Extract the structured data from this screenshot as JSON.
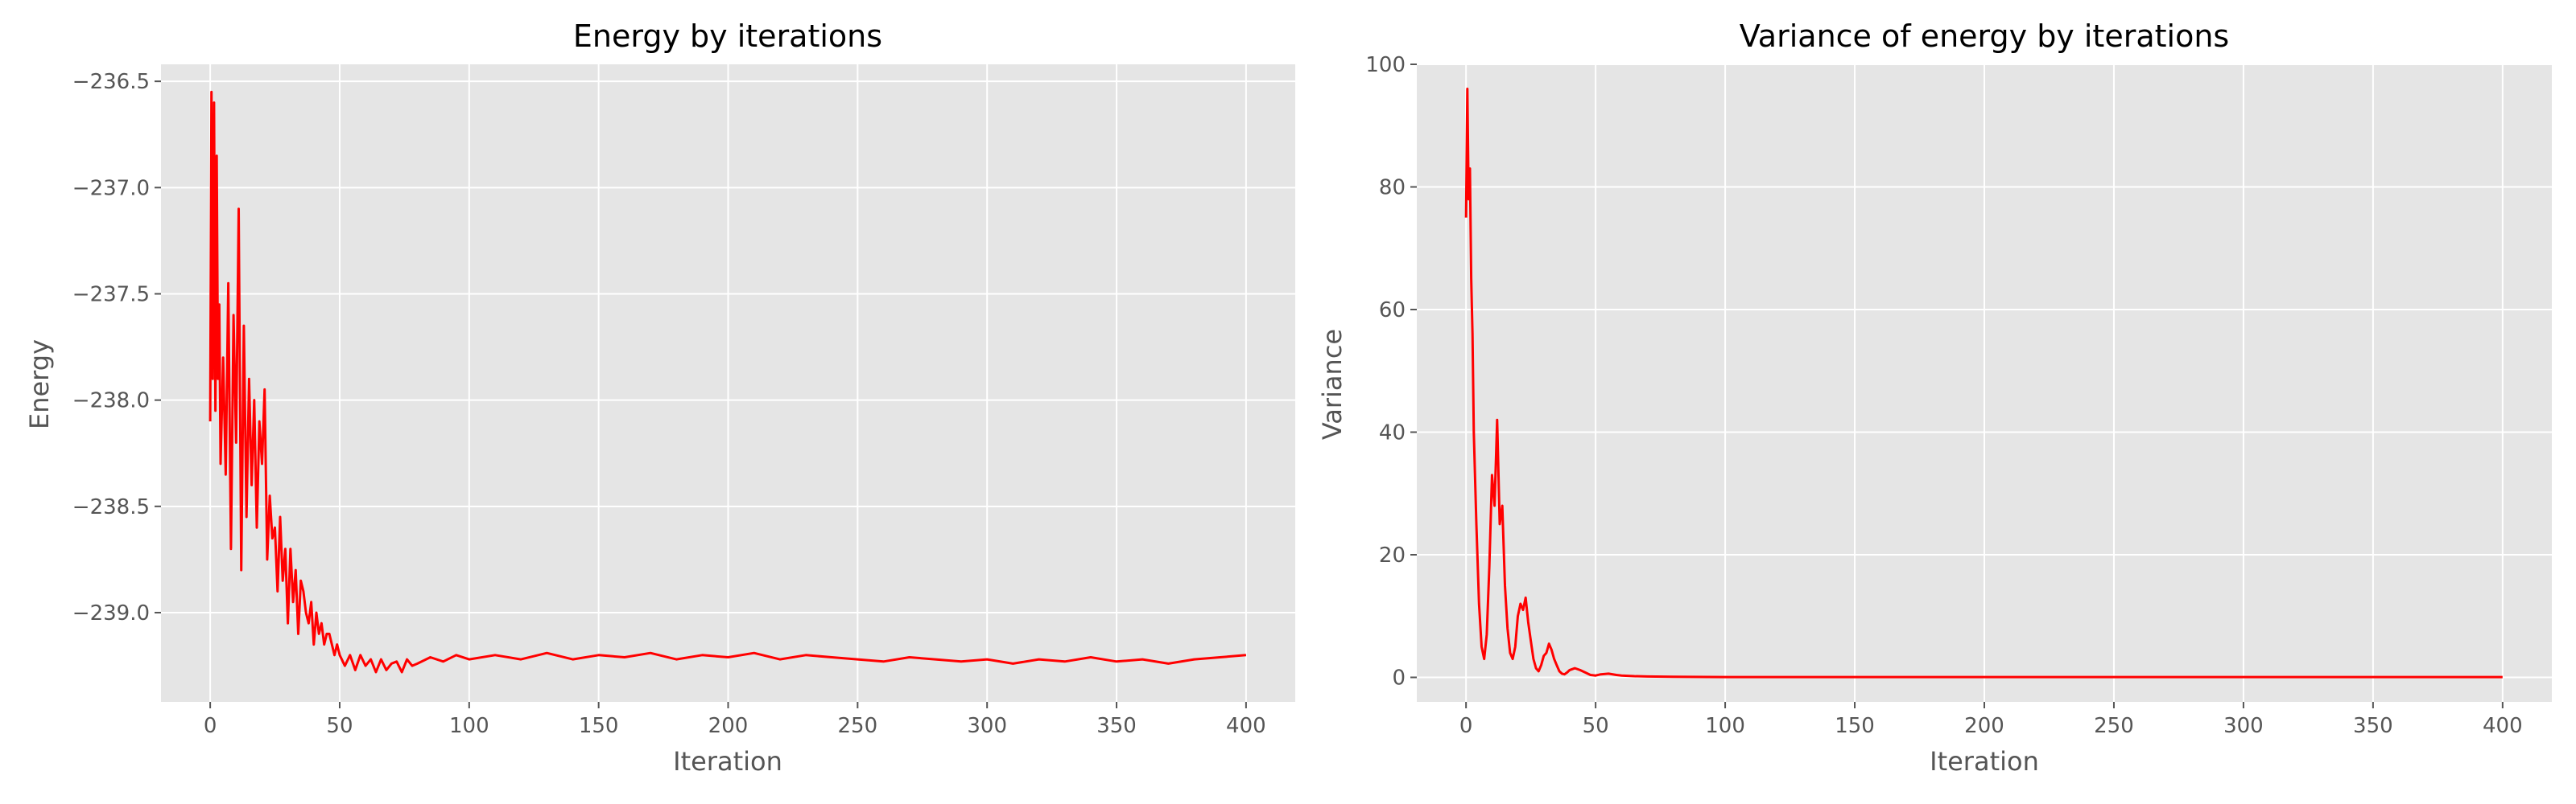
{
  "chart_data": [
    {
      "type": "line",
      "title": "Energy by iterations",
      "xlabel": "Iteration",
      "ylabel": "Energy",
      "xlim": [
        -19,
        419
      ],
      "ylim": [
        -239.42,
        -236.42
      ],
      "xticks": [
        0,
        50,
        100,
        150,
        200,
        250,
        300,
        350,
        400
      ],
      "yticks": [
        -239.0,
        -238.5,
        -238.0,
        -237.5,
        -237.0,
        -236.5
      ],
      "ytick_labels": [
        "−239.0",
        "−238.5",
        "−238.0",
        "−237.5",
        "−237.0",
        "−236.5"
      ],
      "grid": true,
      "color": "#ff0000",
      "series": [
        {
          "x": [
            0,
            0.5,
            1,
            1.5,
            2,
            2.5,
            3,
            3.5,
            4,
            5,
            6,
            7,
            8,
            9,
            10,
            11,
            12,
            13,
            14,
            15,
            16,
            17,
            18,
            19,
            20,
            21,
            22,
            23,
            24,
            25,
            26,
            27,
            28,
            29,
            30,
            31,
            32,
            33,
            34,
            35,
            36,
            37,
            38,
            39,
            40,
            41,
            42,
            43,
            44,
            45,
            46,
            47,
            48,
            49,
            50,
            52,
            54,
            56,
            58,
            60,
            62,
            64,
            66,
            68,
            70,
            72,
            74,
            76,
            78,
            80,
            85,
            90,
            95,
            100,
            110,
            120,
            130,
            140,
            150,
            160,
            170,
            180,
            190,
            200,
            210,
            220,
            230,
            240,
            250,
            260,
            270,
            280,
            290,
            300,
            310,
            320,
            330,
            340,
            350,
            360,
            370,
            380,
            390,
            400
          ],
          "y": [
            -238.1,
            -236.55,
            -237.9,
            -236.6,
            -238.05,
            -236.85,
            -237.9,
            -237.55,
            -238.3,
            -237.8,
            -238.35,
            -237.45,
            -238.7,
            -237.6,
            -238.2,
            -237.1,
            -238.8,
            -237.65,
            -238.55,
            -237.9,
            -238.4,
            -238.0,
            -238.6,
            -238.1,
            -238.3,
            -237.95,
            -238.75,
            -238.45,
            -238.65,
            -238.6,
            -238.9,
            -238.55,
            -238.85,
            -238.7,
            -239.05,
            -238.7,
            -238.95,
            -238.8,
            -239.1,
            -238.85,
            -238.9,
            -239.0,
            -239.05,
            -238.95,
            -239.15,
            -239.0,
            -239.1,
            -239.05,
            -239.15,
            -239.1,
            -239.1,
            -239.15,
            -239.2,
            -239.15,
            -239.2,
            -239.25,
            -239.2,
            -239.27,
            -239.2,
            -239.25,
            -239.22,
            -239.28,
            -239.22,
            -239.27,
            -239.24,
            -239.23,
            -239.28,
            -239.22,
            -239.25,
            -239.24,
            -239.21,
            -239.23,
            -239.2,
            -239.22,
            -239.2,
            -239.22,
            -239.19,
            -239.22,
            -239.2,
            -239.21,
            -239.19,
            -239.22,
            -239.2,
            -239.21,
            -239.19,
            -239.22,
            -239.2,
            -239.21,
            -239.22,
            -239.23,
            -239.21,
            -239.22,
            -239.23,
            -239.22,
            -239.24,
            -239.22,
            -239.23,
            -239.21,
            -239.23,
            -239.22,
            -239.24,
            -239.22,
            -239.21,
            -239.2
          ]
        }
      ]
    },
    {
      "type": "line",
      "title": "Variance of energy by iterations",
      "xlabel": "Iteration",
      "ylabel": "Variance",
      "xlim": [
        -19,
        419
      ],
      "ylim": [
        -4,
        100
      ],
      "xticks": [
        0,
        50,
        100,
        150,
        200,
        250,
        300,
        350,
        400
      ],
      "yticks": [
        0,
        20,
        40,
        60,
        80,
        100
      ],
      "ytick_labels": [
        "0",
        "20",
        "40",
        "60",
        "80",
        "100"
      ],
      "grid": true,
      "color": "#ff0000",
      "series": [
        {
          "x": [
            0,
            0.5,
            1,
            1.5,
            2,
            2.5,
            3,
            4,
            5,
            6,
            7,
            8,
            9,
            10,
            11,
            12,
            13,
            14,
            15,
            16,
            17,
            18,
            19,
            20,
            21,
            22,
            23,
            24,
            25,
            26,
            27,
            28,
            29,
            30,
            31,
            32,
            33,
            34,
            35,
            36,
            37,
            38,
            39,
            40,
            42,
            44,
            46,
            48,
            50,
            52,
            55,
            58,
            60,
            65,
            70,
            80,
            100,
            150,
            200,
            250,
            300,
            350,
            400
          ],
          "y": [
            75,
            96,
            78,
            83,
            65,
            56,
            40,
            25,
            12,
            5,
            3,
            7,
            18,
            33,
            28,
            42,
            25,
            28,
            15,
            8,
            4,
            3,
            5,
            10,
            12,
            11,
            13,
            9,
            6,
            3,
            1.5,
            1,
            2,
            3.5,
            4,
            5.5,
            4.5,
            3,
            2,
            1,
            0.6,
            0.5,
            0.8,
            1.2,
            1.5,
            1.2,
            0.8,
            0.4,
            0.3,
            0.5,
            0.6,
            0.4,
            0.3,
            0.2,
            0.15,
            0.1,
            0.05,
            0.05,
            0.05,
            0.05,
            0.05,
            0.05,
            0.05
          ]
        }
      ]
    }
  ]
}
